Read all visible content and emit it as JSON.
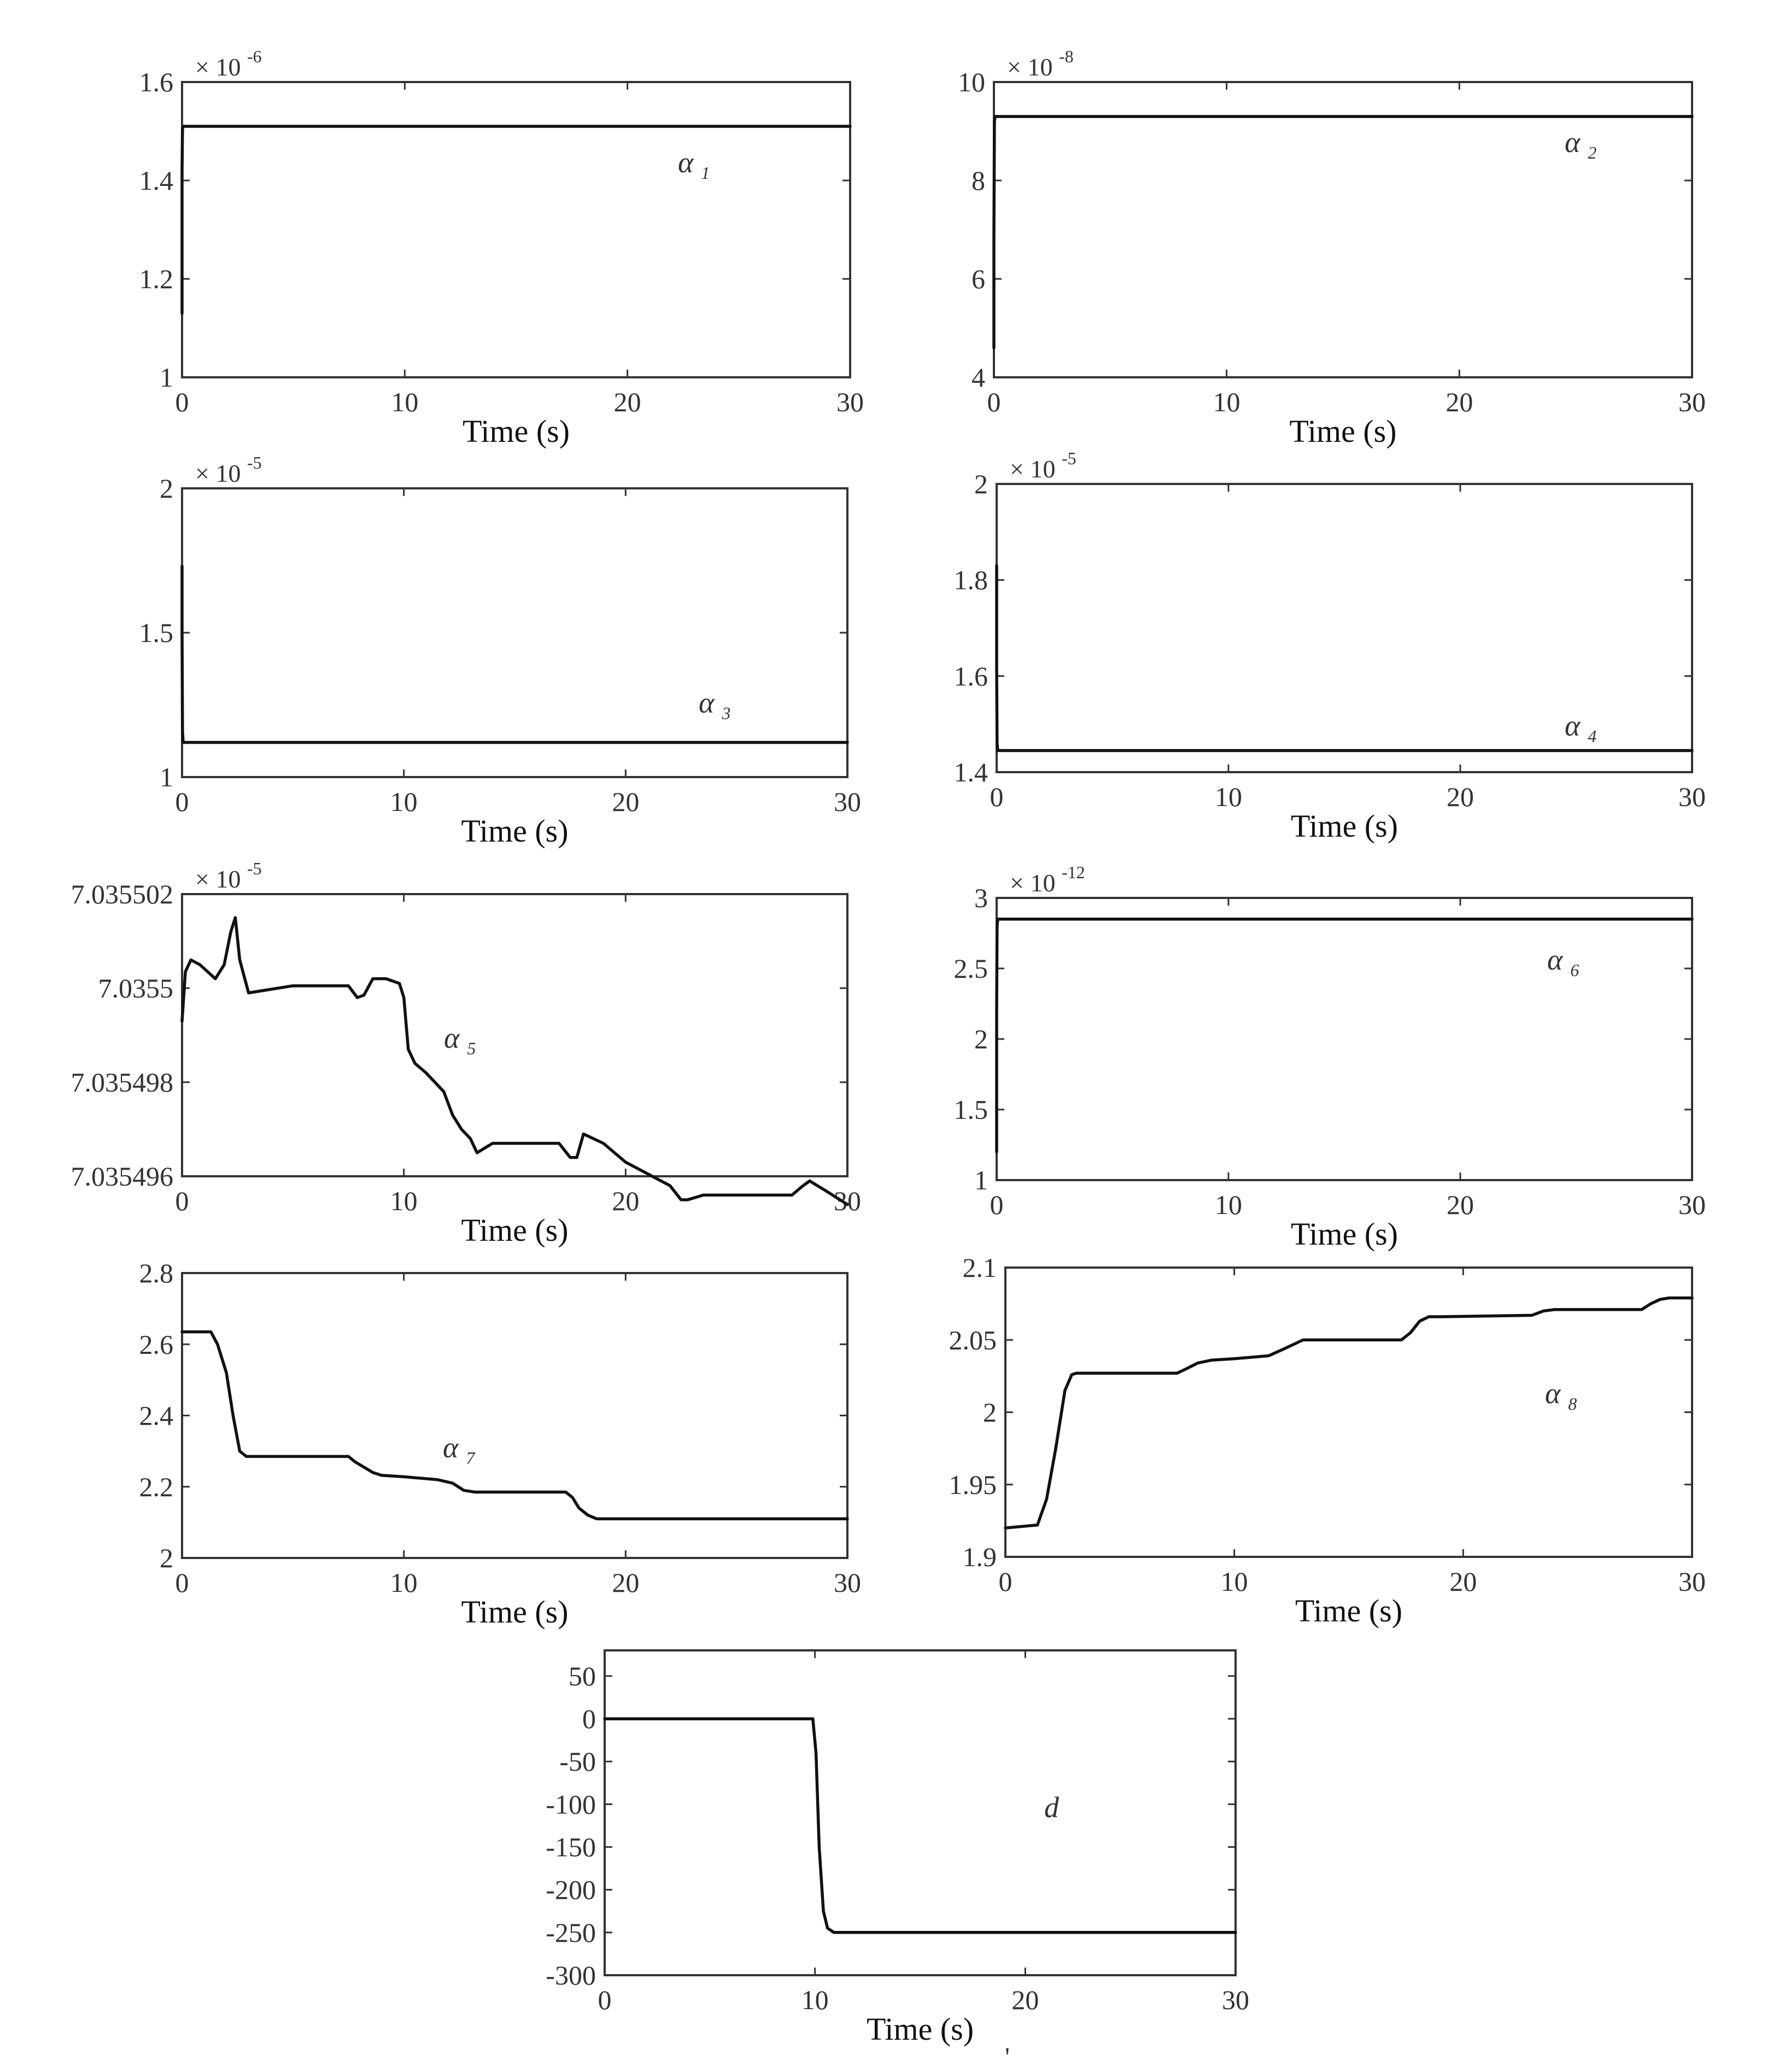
{
  "figure": {
    "stray_mark": "'"
  },
  "chart_data": [
    {
      "id": "alpha1",
      "type": "line",
      "exponent": {
        "prefix": "× 10",
        "power": "-6"
      },
      "label": {
        "symbol": "α",
        "subscript": "1"
      },
      "xlabel": "Time (s)",
      "xlim": [
        0,
        30
      ],
      "ylim": [
        1.0,
        1.6
      ],
      "xticks": [
        {
          "v": 0,
          "t": "0"
        },
        {
          "v": 10,
          "t": "10"
        },
        {
          "v": 20,
          "t": "20"
        },
        {
          "v": 30,
          "t": "30"
        }
      ],
      "yticks": [
        {
          "v": 1.0,
          "t": "1"
        },
        {
          "v": 1.2,
          "t": "1.2"
        },
        {
          "v": 1.4,
          "t": "1.4"
        },
        {
          "v": 1.6,
          "t": "1.6"
        }
      ],
      "series": [
        {
          "x": [
            0,
            0,
            0.02,
            0.05,
            30
          ],
          "y": [
            1.13,
            1.42,
            1.505,
            1.51,
            1.51
          ]
        }
      ]
    },
    {
      "id": "alpha2",
      "type": "line",
      "exponent": {
        "prefix": "× 10",
        "power": "-8"
      },
      "label": {
        "symbol": "α",
        "subscript": "2"
      },
      "xlabel": "Time (s)",
      "xlim": [
        0,
        30
      ],
      "ylim": [
        4,
        10
      ],
      "xticks": [
        {
          "v": 0,
          "t": "0"
        },
        {
          "v": 10,
          "t": "10"
        },
        {
          "v": 20,
          "t": "20"
        },
        {
          "v": 30,
          "t": "30"
        }
      ],
      "yticks": [
        {
          "v": 4,
          "t": "4"
        },
        {
          "v": 6,
          "t": "6"
        },
        {
          "v": 8,
          "t": "8"
        },
        {
          "v": 10,
          "t": "10"
        }
      ],
      "series": [
        {
          "x": [
            0,
            0,
            0.02,
            0.05,
            30
          ],
          "y": [
            4.6,
            6.9,
            9.2,
            9.3,
            9.3
          ]
        }
      ]
    },
    {
      "id": "alpha3",
      "type": "line",
      "exponent": {
        "prefix": "× 10",
        "power": "-5"
      },
      "label": {
        "symbol": "α",
        "subscript": "3"
      },
      "xlabel": "Time (s)",
      "xlim": [
        0,
        30
      ],
      "ylim": [
        1.0,
        2.0
      ],
      "xticks": [
        {
          "v": 0,
          "t": "0"
        },
        {
          "v": 10,
          "t": "10"
        },
        {
          "v": 20,
          "t": "20"
        },
        {
          "v": 30,
          "t": "30"
        }
      ],
      "yticks": [
        {
          "v": 1.0,
          "t": "1"
        },
        {
          "v": 1.5,
          "t": "1.5"
        },
        {
          "v": 2.0,
          "t": "2"
        }
      ],
      "series": [
        {
          "x": [
            0,
            0,
            0.02,
            0.05,
            30
          ],
          "y": [
            1.73,
            1.5,
            1.16,
            1.12,
            1.12
          ]
        }
      ]
    },
    {
      "id": "alpha4",
      "type": "line",
      "exponent": {
        "prefix": "× 10",
        "power": "-5"
      },
      "label": {
        "symbol": "α",
        "subscript": "4"
      },
      "xlabel": "Time (s)",
      "xlim": [
        0,
        30
      ],
      "ylim": [
        1.4,
        2.0
      ],
      "xticks": [
        {
          "v": 0,
          "t": "0"
        },
        {
          "v": 10,
          "t": "10"
        },
        {
          "v": 20,
          "t": "20"
        },
        {
          "v": 30,
          "t": "30"
        }
      ],
      "yticks": [
        {
          "v": 1.4,
          "t": "1.4"
        },
        {
          "v": 1.6,
          "t": "1.6"
        },
        {
          "v": 1.8,
          "t": "1.8"
        },
        {
          "v": 2.0,
          "t": "2"
        }
      ],
      "series": [
        {
          "x": [
            0,
            0,
            0.02,
            0.05,
            30
          ],
          "y": [
            1.83,
            1.62,
            1.46,
            1.445,
            1.445
          ]
        }
      ]
    },
    {
      "id": "alpha5",
      "type": "line",
      "exponent": {
        "prefix": "× 10",
        "power": "-5"
      },
      "label": {
        "symbol": "α",
        "subscript": "5"
      },
      "xlabel": "Time (s)",
      "xlim": [
        0,
        30
      ],
      "ylim": [
        7.035496,
        7.035502
      ],
      "xticks": [
        {
          "v": 0,
          "t": "0"
        },
        {
          "v": 10,
          "t": "10"
        },
        {
          "v": 20,
          "t": "20"
        },
        {
          "v": 30,
          "t": "30"
        }
      ],
      "yticks": [
        {
          "v": 7.035496,
          "t": "7.035496"
        },
        {
          "v": 7.035498,
          "t": "7.035498"
        },
        {
          "v": 7.0355,
          "t": "7.0355"
        },
        {
          "v": 7.035502,
          "t": "7.035502"
        }
      ],
      "series": [
        {
          "x": [
            0,
            0.15,
            0.4,
            0.8,
            1.5,
            1.9,
            2.2,
            2.4,
            2.6,
            3.0,
            5,
            7.5,
            7.9,
            8.2,
            8.6,
            9.2,
            9.8,
            10.0,
            10.2,
            10.5,
            11,
            11.8,
            12.2,
            12.6,
            13.0,
            13.3,
            14,
            17,
            17.5,
            17.8,
            18.1,
            19,
            20,
            22,
            22.5,
            22.8,
            23.5,
            26,
            27.5,
            28.0,
            28.3,
            29,
            30
          ],
          "y": [
            7.0354993,
            7.03550035,
            7.0355006,
            7.0355005,
            7.0355002,
            7.0355005,
            7.0355012,
            7.0355015,
            7.0355006,
            7.0354999,
            7.03550005,
            7.03550005,
            7.0354998,
            7.03549985,
            7.0355002,
            7.0355002,
            7.0355001,
            7.0354998,
            7.0354987,
            7.0354984,
            7.0354982,
            7.0354978,
            7.0354973,
            7.035497,
            7.0354968,
            7.0354965,
            7.0354967,
            7.0354967,
            7.0354964,
            7.0354964,
            7.0354969,
            7.0354967,
            7.0354963,
            7.0354958,
            7.0354955,
            7.0354955,
            7.0354956,
            7.0354956,
            7.0354956,
            7.0354958,
            7.0354959,
            7.0354957,
            7.0354954
          ]
        }
      ]
    },
    {
      "id": "alpha6",
      "type": "line",
      "exponent": {
        "prefix": "× 10",
        "power": "-12"
      },
      "label": {
        "symbol": "α",
        "subscript": "6"
      },
      "xlabel": "Time (s)",
      "xlim": [
        0,
        30
      ],
      "ylim": [
        1.0,
        3.0
      ],
      "xticks": [
        {
          "v": 0,
          "t": "0"
        },
        {
          "v": 10,
          "t": "10"
        },
        {
          "v": 20,
          "t": "20"
        },
        {
          "v": 30,
          "t": "30"
        }
      ],
      "yticks": [
        {
          "v": 1.0,
          "t": "1"
        },
        {
          "v": 1.5,
          "t": "1.5"
        },
        {
          "v": 2.0,
          "t": "2"
        },
        {
          "v": 2.5,
          "t": "2.5"
        },
        {
          "v": 3.0,
          "t": "3"
        }
      ],
      "series": [
        {
          "x": [
            0,
            0,
            0.02,
            0.05,
            30
          ],
          "y": [
            1.2,
            2.2,
            2.8,
            2.85,
            2.85
          ]
        }
      ]
    },
    {
      "id": "alpha7",
      "type": "line",
      "exponent": null,
      "label": {
        "symbol": "α",
        "subscript": "7"
      },
      "xlabel": "Time (s)",
      "xlim": [
        0,
        30
      ],
      "ylim": [
        2.0,
        2.8
      ],
      "xticks": [
        {
          "v": 0,
          "t": "0"
        },
        {
          "v": 10,
          "t": "10"
        },
        {
          "v": 20,
          "t": "20"
        },
        {
          "v": 30,
          "t": "30"
        }
      ],
      "yticks": [
        {
          "v": 2.0,
          "t": "2"
        },
        {
          "v": 2.2,
          "t": "2.2"
        },
        {
          "v": 2.4,
          "t": "2.4"
        },
        {
          "v": 2.6,
          "t": "2.6"
        },
        {
          "v": 2.8,
          "t": "2.8"
        }
      ],
      "series": [
        {
          "x": [
            0,
            1.3,
            1.6,
            2.0,
            2.3,
            2.6,
            2.9,
            3.0,
            7.5,
            7.8,
            8.2,
            8.6,
            9.0,
            10,
            11.5,
            12.2,
            12.7,
            13.2,
            17.3,
            17.6,
            17.9,
            18.3,
            18.7,
            19,
            30
          ],
          "y": [
            2.635,
            2.635,
            2.6,
            2.52,
            2.4,
            2.3,
            2.285,
            2.285,
            2.285,
            2.27,
            2.255,
            2.24,
            2.232,
            2.228,
            2.22,
            2.21,
            2.19,
            2.185,
            2.185,
            2.17,
            2.14,
            2.12,
            2.11,
            2.11,
            2.11
          ]
        }
      ]
    },
    {
      "id": "alpha8",
      "type": "line",
      "exponent": null,
      "label": {
        "symbol": "α",
        "subscript": "8"
      },
      "xlabel": "Time (s)",
      "xlim": [
        0,
        30
      ],
      "ylim": [
        1.9,
        2.1
      ],
      "xticks": [
        {
          "v": 0,
          "t": "0"
        },
        {
          "v": 10,
          "t": "10"
        },
        {
          "v": 20,
          "t": "20"
        },
        {
          "v": 30,
          "t": "30"
        }
      ],
      "yticks": [
        {
          "v": 1.9,
          "t": "1.9"
        },
        {
          "v": 1.95,
          "t": "1.95"
        },
        {
          "v": 2.0,
          "t": "2"
        },
        {
          "v": 2.05,
          "t": "2.05"
        },
        {
          "v": 2.1,
          "t": "2.1"
        }
      ],
      "series": [
        {
          "x": [
            0,
            1.4,
            1.8,
            2.2,
            2.6,
            2.9,
            3.1,
            7.5,
            7.9,
            8.4,
            9,
            10,
            11.5,
            12.2,
            13,
            17.3,
            17.7,
            18.1,
            18.5,
            19,
            23,
            23.5,
            24,
            27.8,
            28.2,
            28.6,
            29,
            30
          ],
          "y": [
            1.92,
            1.922,
            1.94,
            1.975,
            2.015,
            2.026,
            2.027,
            2.027,
            2.03,
            2.034,
            2.036,
            2.037,
            2.039,
            2.044,
            2.05,
            2.05,
            2.055,
            2.063,
            2.066,
            2.066,
            2.067,
            2.07,
            2.071,
            2.071,
            2.075,
            2.078,
            2.079,
            2.079
          ]
        }
      ]
    },
    {
      "id": "d",
      "type": "line",
      "exponent": null,
      "label": {
        "symbol": "d",
        "subscript": ""
      },
      "xlabel": "Time (s)",
      "xlim": [
        0,
        30
      ],
      "ylim": [
        -300,
        80
      ],
      "xticks": [
        {
          "v": 0,
          "t": "0"
        },
        {
          "v": 10,
          "t": "10"
        },
        {
          "v": 20,
          "t": "20"
        },
        {
          "v": 30,
          "t": "30"
        }
      ],
      "yticks": [
        {
          "v": -300,
          "t": "-300"
        },
        {
          "v": -250,
          "t": "-250"
        },
        {
          "v": -200,
          "t": "-200"
        },
        {
          "v": -150,
          "t": "-150"
        },
        {
          "v": -100,
          "t": "-100"
        },
        {
          "v": -50,
          "t": "-50"
        },
        {
          "v": 0,
          "t": "0"
        },
        {
          "v": 50,
          "t": "50"
        }
      ],
      "series": [
        {
          "x": [
            0,
            9.9,
            10.05,
            10.2,
            10.4,
            10.6,
            10.9,
            11.2,
            30
          ],
          "y": [
            0,
            0,
            -40,
            -150,
            -225,
            -245,
            -250,
            -250,
            -250
          ]
        }
      ]
    }
  ]
}
